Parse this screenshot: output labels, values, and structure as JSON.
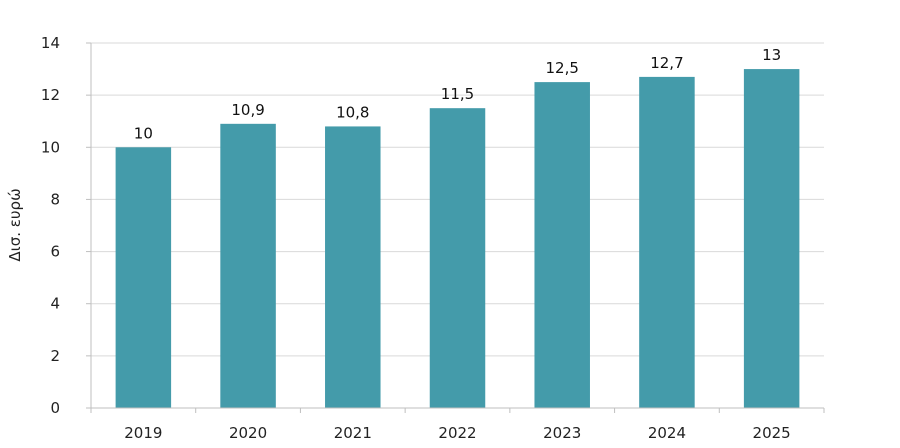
{
  "chart_data": {
    "type": "bar",
    "title": "",
    "xlabel": "",
    "ylabel": "Δισ. ευρώ",
    "categories": [
      "2019",
      "2020",
      "2021",
      "2022",
      "2023",
      "2024",
      "2025"
    ],
    "values": [
      10,
      10.9,
      10.8,
      11.5,
      12.5,
      12.7,
      13
    ],
    "value_labels": [
      "10",
      "10,9",
      "10,8",
      "11,5",
      "12,5",
      "12,7",
      "13"
    ],
    "ylim": [
      0,
      14
    ],
    "yticks": [
      0,
      2,
      4,
      6,
      8,
      10,
      12,
      14
    ],
    "grid": true,
    "legend": "none",
    "colors": {
      "bar": "#449BAA",
      "grid": "#D9D9D9",
      "axis": "#BFBFBF"
    }
  }
}
